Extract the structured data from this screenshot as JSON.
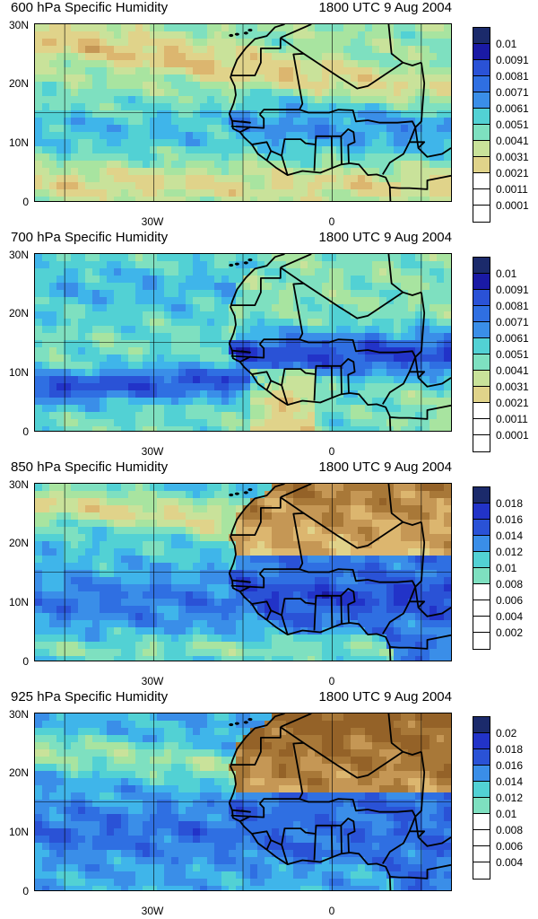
{
  "panels": [
    {
      "title_left": "600 hPa Specific Humidity",
      "title_right": "1800 UTC 9 Aug 2004",
      "y_ticks": [
        "30N",
        "20N",
        "10N",
        "0"
      ],
      "x_ticks": [
        "30W",
        "0"
      ],
      "colorbar_labels": [
        "0.01",
        "0.0091",
        "0.0081",
        "0.0071",
        "0.0061",
        "0.0051",
        "0.0041",
        "0.0031",
        "0.0021",
        "0.0011",
        "0.0001"
      ],
      "palette": [
        "#1b2a6b",
        "#1a1aa5",
        "#2233c8",
        "#2a52d6",
        "#2f6fe2",
        "#3a8ee8",
        "#3fb5ea",
        "#52d1d4",
        "#7ee0c0",
        "#a8e4a0",
        "#c9e29a",
        "#e0d38a",
        "#dcb66f",
        "#c59755",
        "#a87838",
        "#946228"
      ],
      "field": "mid"
    },
    {
      "title_left": "700 hPa Specific Humidity",
      "title_right": "1800 UTC 9 Aug 2004",
      "y_ticks": [
        "30N",
        "20N",
        "10N",
        "0"
      ],
      "x_ticks": [
        "30W",
        "0"
      ],
      "colorbar_labels": [
        "0.01",
        "0.0091",
        "0.0081",
        "0.0071",
        "0.0061",
        "0.0051",
        "0.0041",
        "0.0031",
        "0.0021",
        "0.0011",
        "0.0001"
      ],
      "palette": [
        "#1b2a6b",
        "#1a1aa5",
        "#2233c8",
        "#2a52d6",
        "#2f6fe2",
        "#3a8ee8",
        "#3fb5ea",
        "#52d1d4",
        "#7ee0c0",
        "#a8e4a0",
        "#c9e29a",
        "#e0d38a",
        "#dcb66f",
        "#c59755",
        "#a87838",
        "#946228"
      ],
      "field": "moist"
    },
    {
      "title_left": "850 hPa Specific Humidity",
      "title_right": "1800 UTC 9 Aug 2004",
      "y_ticks": [
        "30N",
        "20N",
        "10N",
        "0"
      ],
      "x_ticks": [
        "30W",
        "0"
      ],
      "colorbar_labels": [
        "0.018",
        "0.016",
        "0.014",
        "0.012",
        "0.01",
        "0.008",
        "0.006",
        "0.004",
        "0.002"
      ],
      "palette": [
        "#1b2a6b",
        "#1a1aa5",
        "#2233c8",
        "#2a52d6",
        "#2f6fe2",
        "#3a8ee8",
        "#3fb5ea",
        "#52d1d4",
        "#7ee0c0",
        "#a8e4a0",
        "#c9e29a",
        "#e0d38a",
        "#dcb66f",
        "#c59755",
        "#a87838",
        "#946228"
      ],
      "field": "low"
    },
    {
      "title_left": "925 hPa Specific Humidity",
      "title_right": "1800 UTC 9 Aug 2004",
      "y_ticks": [
        "30N",
        "20N",
        "10N",
        "0"
      ],
      "x_ticks": [
        "30W",
        "0"
      ],
      "colorbar_labels": [
        "0.02",
        "0.018",
        "0.016",
        "0.014",
        "0.012",
        "0.01",
        "0.008",
        "0.006",
        "0.004"
      ],
      "palette": [
        "#1b2a6b",
        "#1a1aa5",
        "#2233c8",
        "#2a52d6",
        "#2f6fe2",
        "#3a8ee8",
        "#3fb5ea",
        "#52d1d4",
        "#7ee0c0",
        "#a8e4a0",
        "#c9e29a",
        "#e0d38a",
        "#dcb66f",
        "#c59755",
        "#a87838",
        "#946228"
      ],
      "field": "surface"
    }
  ],
  "map_extent": {
    "lon": [
      -50,
      20
    ],
    "lat": [
      0,
      30
    ]
  },
  "grid_lons": [
    -45,
    -30,
    -15,
    0,
    15
  ],
  "grid_lats": [
    15
  ]
}
